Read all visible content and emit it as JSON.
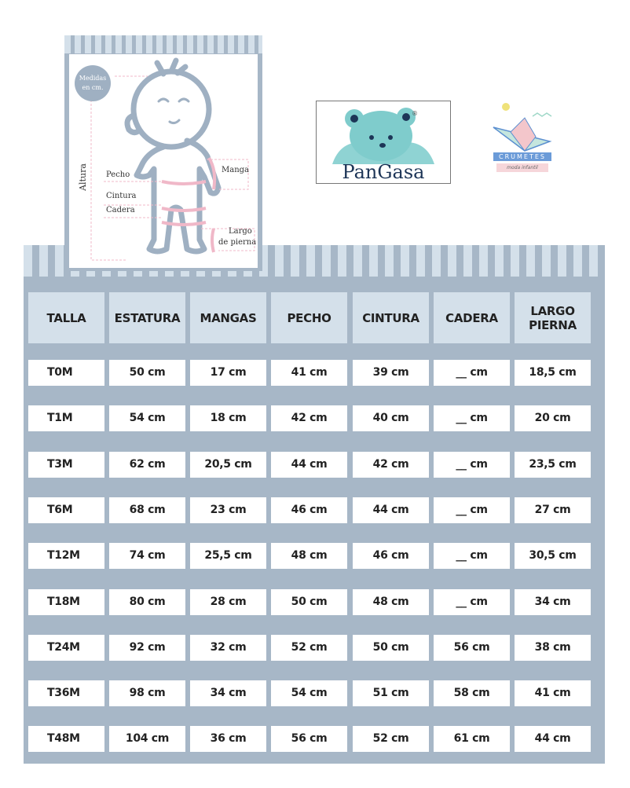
{
  "diagram": {
    "badge": "Medidas en cm.",
    "labels": {
      "altura": "Altura",
      "pecho": "Pecho",
      "cintura": "Cintura",
      "cadera": "Cadera",
      "manga": "Manga",
      "largo": "Largo",
      "de_pierna": "de pierna"
    }
  },
  "logos": {
    "pangasa": "PanGasa",
    "crumetes": "CRUMETES",
    "crumetes_sub": "moda infantil"
  },
  "colors": {
    "panel": "#a7b7c7",
    "header": "#d4e0ea",
    "pink": "#f0b8c8",
    "bear": "#7fcccc"
  },
  "table": {
    "headers": [
      "TALLA",
      "ESTATURA",
      "MANGAS",
      "PECHO",
      "CINTURA",
      "CADERA",
      "LARGO PIERNA"
    ],
    "rows": [
      [
        "T0M",
        "50 cm",
        "17 cm",
        "41 cm",
        "39 cm",
        "__ cm",
        "18,5 cm"
      ],
      [
        "T1M",
        "54 cm",
        "18 cm",
        "42 cm",
        "40 cm",
        "__ cm",
        "20 cm"
      ],
      [
        "T3M",
        "62 cm",
        "20,5 cm",
        "44 cm",
        "42 cm",
        "__ cm",
        "23,5 cm"
      ],
      [
        "T6M",
        "68 cm",
        "23 cm",
        "46 cm",
        "44 cm",
        "__ cm",
        "27 cm"
      ],
      [
        "T12M",
        "74 cm",
        "25,5 cm",
        "48 cm",
        "46 cm",
        "__ cm",
        "30,5 cm"
      ],
      [
        "T18M",
        "80 cm",
        "28 cm",
        "50 cm",
        "48 cm",
        "__ cm",
        "34 cm"
      ],
      [
        "T24M",
        "92 cm",
        "32 cm",
        "52 cm",
        "50 cm",
        "56 cm",
        "38 cm"
      ],
      [
        "T36M",
        "98 cm",
        "34 cm",
        "54 cm",
        "51 cm",
        "58 cm",
        "41 cm"
      ],
      [
        "T48M",
        "104 cm",
        "36 cm",
        "56 cm",
        "52 cm",
        "61 cm",
        "44 cm"
      ]
    ]
  }
}
